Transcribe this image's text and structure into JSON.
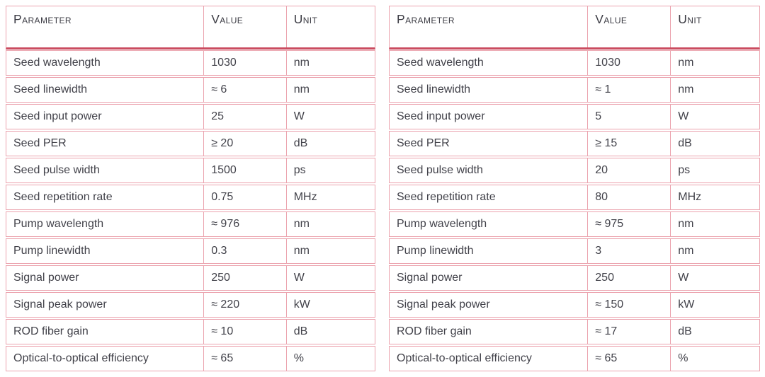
{
  "colors": {
    "row_border": "#eba3ae",
    "header_rule": "#ca4b5f",
    "text": "#42424a",
    "background": "#ffffff"
  },
  "tables": [
    {
      "name": "left-spec-table",
      "headers": [
        "Parameter",
        "Value",
        "Unit"
      ],
      "rows": [
        [
          "Seed wavelength",
          "1030",
          "nm"
        ],
        [
          "Seed linewidth",
          "≈ 6",
          "nm"
        ],
        [
          "Seed input power",
          "25",
          "W"
        ],
        [
          "Seed PER",
          "≥ 20",
          "dB"
        ],
        [
          "Seed pulse width",
          "1500",
          "ps"
        ],
        [
          "Seed repetition rate",
          "0.75",
          "MHz"
        ],
        [
          "Pump wavelength",
          "≈ 976",
          "nm"
        ],
        [
          "Pump linewidth",
          "0.3",
          "nm"
        ],
        [
          "Signal power",
          "250",
          "W"
        ],
        [
          "Signal peak power",
          "≈ 220",
          "kW"
        ],
        [
          "ROD fiber gain",
          "≈ 10",
          "dB"
        ],
        [
          "Optical-to-optical efficiency",
          "≈ 65",
          "%"
        ]
      ]
    },
    {
      "name": "right-spec-table",
      "headers": [
        "Parameter",
        "Value",
        "Unit"
      ],
      "rows": [
        [
          "Seed wavelength",
          "1030",
          "nm"
        ],
        [
          "Seed linewidth",
          "≈ 1",
          "nm"
        ],
        [
          "Seed input power",
          "5",
          "W"
        ],
        [
          "Seed PER",
          "≥ 15",
          "dB"
        ],
        [
          "Seed pulse width",
          "20",
          "ps"
        ],
        [
          "Seed repetition rate",
          "80",
          "MHz"
        ],
        [
          "Pump wavelength",
          "≈ 975",
          "nm"
        ],
        [
          "Pump linewidth",
          "3",
          "nm"
        ],
        [
          "Signal power",
          "250",
          "W"
        ],
        [
          "Signal peak power",
          "≈ 150",
          "kW"
        ],
        [
          "ROD fiber gain",
          "≈ 17",
          "dB"
        ],
        [
          "Optical-to-optical efficiency",
          "≈ 65",
          "%"
        ]
      ]
    }
  ]
}
